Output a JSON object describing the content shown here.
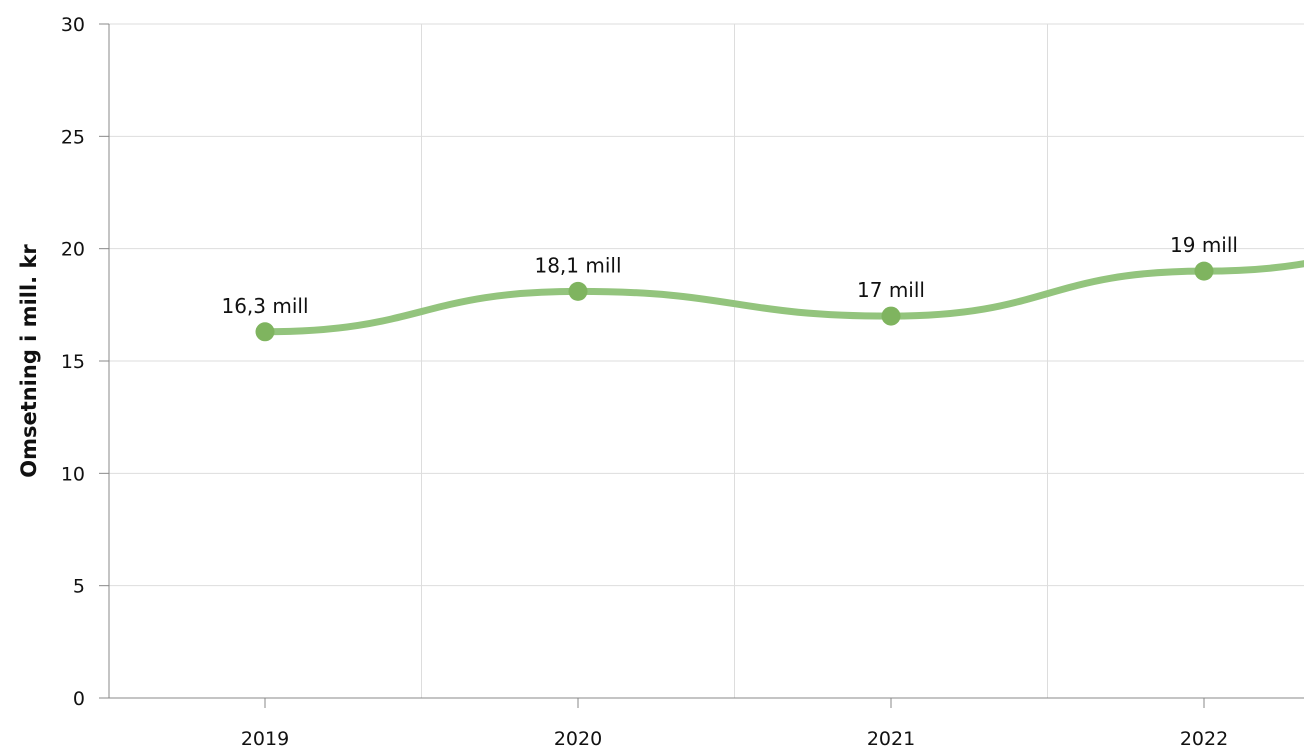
{
  "chart_data": {
    "type": "line",
    "title": "",
    "xlabel": "",
    "ylabel": "Omsetning i mill. kr",
    "categories": [
      "2019",
      "2020",
      "2021",
      "2022"
    ],
    "series": [
      {
        "values": [
          16.3,
          18.1,
          17.0,
          19.0
        ],
        "labels": [
          "16,3 mill",
          "18,1 mill",
          "17 mill",
          "19 mill"
        ]
      }
    ],
    "ylim": [
      0,
      30
    ],
    "yticks": [
      0,
      5,
      10,
      15,
      20,
      25,
      30
    ],
    "grid": true,
    "line_color": "#93c47d",
    "marker_color": "#7fb45f",
    "grid_color": "#dddddd",
    "axis_color": "#888888"
  }
}
